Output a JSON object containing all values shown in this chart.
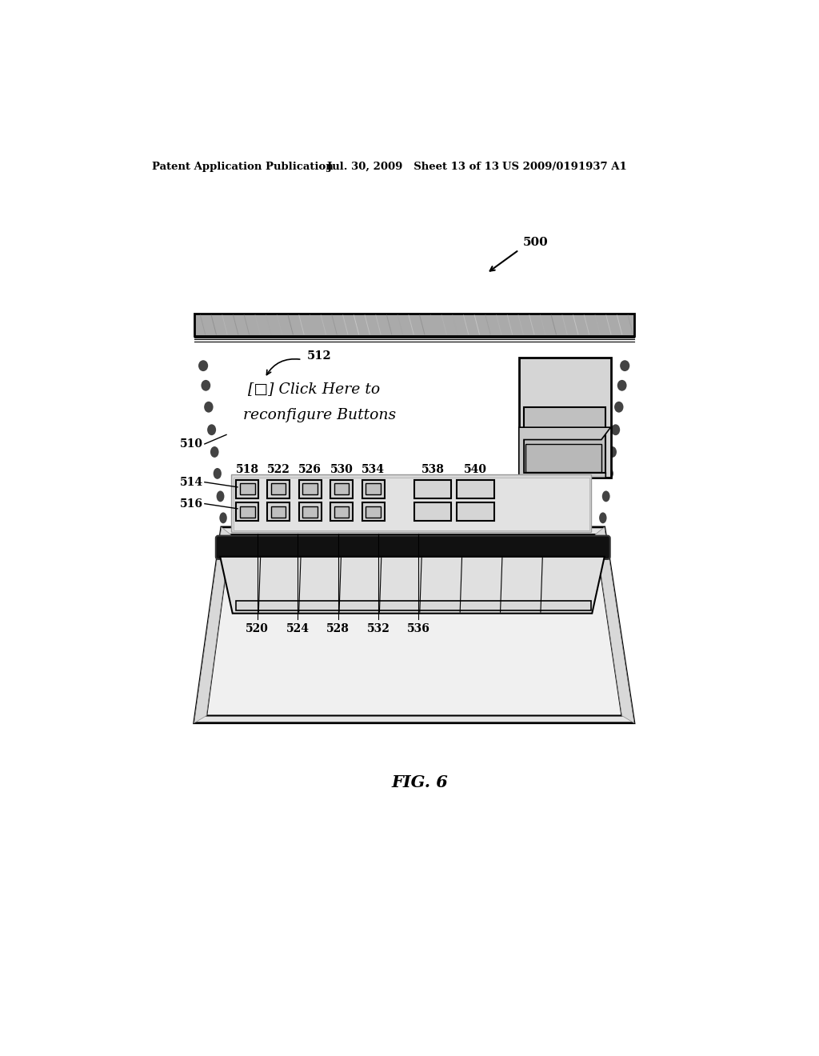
{
  "bg_color": "#ffffff",
  "header_left": "Patent Application Publication",
  "header_mid": "Jul. 30, 2009   Sheet 13 of 13",
  "header_right": "US 2009/0191937 A1",
  "fig_label": "FIG. 6",
  "ref_500": "500",
  "ref_510": "510",
  "ref_512": "512",
  "ref_514": "514",
  "ref_516": "516",
  "ref_518": "518",
  "ref_520": "520",
  "ref_522": "522",
  "ref_524": "524",
  "ref_526": "526",
  "ref_528": "528",
  "ref_530": "530",
  "ref_532": "532",
  "ref_534": "534",
  "ref_536": "536",
  "ref_538": "538",
  "ref_540": "540"
}
